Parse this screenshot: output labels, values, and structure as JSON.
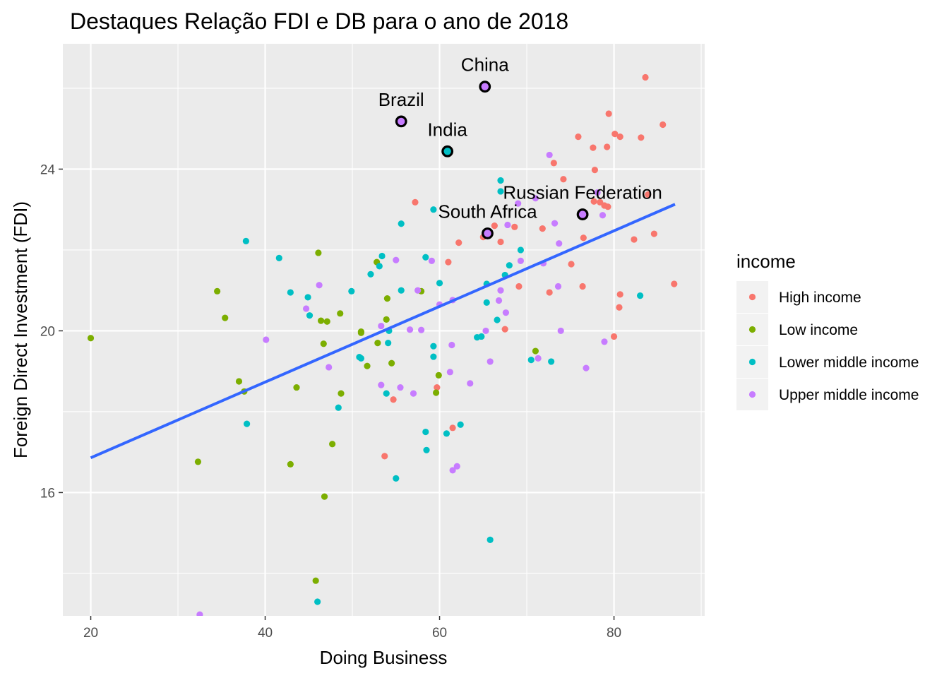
{
  "chart_data": {
    "type": "scatter",
    "title": "Destaques Relação FDI e DB para o ano de 2018",
    "xlabel": "Doing Business",
    "ylabel": "Foreign Direct Investment (FDI)",
    "xlim": [
      16.8,
      90.4
    ],
    "ylim": [
      12.95,
      27.1
    ],
    "x_ticks": [
      20,
      40,
      60,
      80
    ],
    "y_ticks": [
      16,
      20,
      24
    ],
    "grid": true,
    "legend": {
      "title": "income",
      "position": "right",
      "entries": [
        {
          "name": "High income",
          "color": "#F8766D"
        },
        {
          "name": "Low income",
          "color": "#7CAE00"
        },
        {
          "name": "Lower middle income",
          "color": "#00BFC4"
        },
        {
          "name": "Upper middle income",
          "color": "#C77CFF"
        }
      ]
    },
    "trend_line": {
      "color": "#3366FF",
      "x": [
        20,
        87
      ],
      "y": [
        16.86,
        23.13
      ]
    },
    "series": [
      {
        "name": "High income",
        "color": "#F8766D",
        "points": [
          [
            83.6,
            26.27
          ],
          [
            85.6,
            25.1
          ],
          [
            79.4,
            25.37
          ],
          [
            80.1,
            24.87
          ],
          [
            80.7,
            24.8
          ],
          [
            83.1,
            24.78
          ],
          [
            79.2,
            24.55
          ],
          [
            77.6,
            24.53
          ],
          [
            75.9,
            24.8
          ],
          [
            73.1,
            24.15
          ],
          [
            77.8,
            23.98
          ],
          [
            74.2,
            23.75
          ],
          [
            78.4,
            23.18
          ],
          [
            77.7,
            23.2
          ],
          [
            78.9,
            23.1
          ],
          [
            79.3,
            23.07
          ],
          [
            83.9,
            23.37
          ],
          [
            57.2,
            23.18
          ],
          [
            66.3,
            22.6
          ],
          [
            68.6,
            22.57
          ],
          [
            71.8,
            22.53
          ],
          [
            84.6,
            22.4
          ],
          [
            82.3,
            22.26
          ],
          [
            76.5,
            22.3
          ],
          [
            62.2,
            22.18
          ],
          [
            67.0,
            22.2
          ],
          [
            65.0,
            22.32
          ],
          [
            61.0,
            21.7
          ],
          [
            75.1,
            21.65
          ],
          [
            69.1,
            21.1
          ],
          [
            76.4,
            21.1
          ],
          [
            72.6,
            20.95
          ],
          [
            80.7,
            20.9
          ],
          [
            80.6,
            20.58
          ],
          [
            67.5,
            20.04
          ],
          [
            80.0,
            19.86
          ],
          [
            86.9,
            21.16
          ],
          [
            59.7,
            18.6
          ],
          [
            54.7,
            18.3
          ],
          [
            61.5,
            17.6
          ],
          [
            53.7,
            16.9
          ]
        ]
      },
      {
        "name": "Low income",
        "color": "#7CAE00",
        "points": [
          [
            20.0,
            19.82
          ],
          [
            34.5,
            20.98
          ],
          [
            35.4,
            20.32
          ],
          [
            37.0,
            18.75
          ],
          [
            37.6,
            18.5
          ],
          [
            32.3,
            16.76
          ],
          [
            46.1,
            21.93
          ],
          [
            52.8,
            21.7
          ],
          [
            54.0,
            20.8
          ],
          [
            53.9,
            20.28
          ],
          [
            46.4,
            20.25
          ],
          [
            47.1,
            20.23
          ],
          [
            48.6,
            20.43
          ],
          [
            51.0,
            19.98
          ],
          [
            51.0,
            19.95
          ],
          [
            46.7,
            19.68
          ],
          [
            52.9,
            19.7
          ],
          [
            54.5,
            19.2
          ],
          [
            51.7,
            19.13
          ],
          [
            43.6,
            18.6
          ],
          [
            48.7,
            18.45
          ],
          [
            59.9,
            18.9
          ],
          [
            59.6,
            18.47
          ],
          [
            47.7,
            17.2
          ],
          [
            42.9,
            16.7
          ],
          [
            46.8,
            15.9
          ],
          [
            45.8,
            13.82
          ],
          [
            57.9,
            20.98
          ],
          [
            71.0,
            19.5
          ]
        ]
      },
      {
        "name": "Lower middle income",
        "color": "#00BFC4",
        "points": [
          [
            37.8,
            22.22
          ],
          [
            41.6,
            21.8
          ],
          [
            53.4,
            21.85
          ],
          [
            53.1,
            21.6
          ],
          [
            52.1,
            21.4
          ],
          [
            58.4,
            21.82
          ],
          [
            42.9,
            20.95
          ],
          [
            44.9,
            20.83
          ],
          [
            45.1,
            20.38
          ],
          [
            49.9,
            20.98
          ],
          [
            55.6,
            21.0
          ],
          [
            60.0,
            21.18
          ],
          [
            59.3,
            23.0
          ],
          [
            55.6,
            22.65
          ],
          [
            67.0,
            23.72
          ],
          [
            67.0,
            23.45
          ],
          [
            65.4,
            21.16
          ],
          [
            67.5,
            21.38
          ],
          [
            68.0,
            21.62
          ],
          [
            69.3,
            22.0
          ],
          [
            54.2,
            20.0
          ],
          [
            54.1,
            19.7
          ],
          [
            50.8,
            19.35
          ],
          [
            51.0,
            19.32
          ],
          [
            59.3,
            19.62
          ],
          [
            59.3,
            19.36
          ],
          [
            64.3,
            19.84
          ],
          [
            64.8,
            19.86
          ],
          [
            65.4,
            20.7
          ],
          [
            66.6,
            20.27
          ],
          [
            53.9,
            18.45
          ],
          [
            48.4,
            18.1
          ],
          [
            37.9,
            17.7
          ],
          [
            58.4,
            17.5
          ],
          [
            60.8,
            17.46
          ],
          [
            62.4,
            17.68
          ],
          [
            58.5,
            17.05
          ],
          [
            55.0,
            16.35
          ],
          [
            46.0,
            13.3
          ],
          [
            65.8,
            14.83
          ],
          [
            70.5,
            19.28
          ],
          [
            72.8,
            19.24
          ],
          [
            83.0,
            20.87
          ]
        ]
      },
      {
        "name": "Upper middle income",
        "color": "#C77CFF",
        "points": [
          [
            72.6,
            24.35
          ],
          [
            71.0,
            23.28
          ],
          [
            69.0,
            23.15
          ],
          [
            67.8,
            22.62
          ],
          [
            73.2,
            22.66
          ],
          [
            73.7,
            22.16
          ],
          [
            71.9,
            21.67
          ],
          [
            69.3,
            21.73
          ],
          [
            55.0,
            21.75
          ],
          [
            59.1,
            21.73
          ],
          [
            57.5,
            21.0
          ],
          [
            61.5,
            20.76
          ],
          [
            60.0,
            20.65
          ],
          [
            67.0,
            21.0
          ],
          [
            66.8,
            20.75
          ],
          [
            67.6,
            20.45
          ],
          [
            73.6,
            21.1
          ],
          [
            46.2,
            21.13
          ],
          [
            44.7,
            20.55
          ],
          [
            40.1,
            19.78
          ],
          [
            47.3,
            19.1
          ],
          [
            53.3,
            20.12
          ],
          [
            56.6,
            20.03
          ],
          [
            57.9,
            20.02
          ],
          [
            61.2,
            18.98
          ],
          [
            61.4,
            19.65
          ],
          [
            65.3,
            20.0
          ],
          [
            65.8,
            19.24
          ],
          [
            71.3,
            19.32
          ],
          [
            73.9,
            20.0
          ],
          [
            78.9,
            19.73
          ],
          [
            76.8,
            19.08
          ],
          [
            53.3,
            18.66
          ],
          [
            55.5,
            18.6
          ],
          [
            57.0,
            18.45
          ],
          [
            61.5,
            16.55
          ],
          [
            62.0,
            16.65
          ],
          [
            63.5,
            18.7
          ],
          [
            78.1,
            23.42
          ],
          [
            78.7,
            22.86
          ],
          [
            32.5,
            12.98
          ]
        ]
      }
    ],
    "highlighted": [
      {
        "label": "China",
        "x": 65.2,
        "y": 26.04,
        "color": "#C77CFF"
      },
      {
        "label": "Brazil",
        "x": 55.6,
        "y": 25.18,
        "color": "#C77CFF"
      },
      {
        "label": "India",
        "x": 60.9,
        "y": 24.44,
        "color": "#00BFC4"
      },
      {
        "label": "Russian Federation",
        "x": 76.4,
        "y": 22.88,
        "color": "#C77CFF"
      },
      {
        "label": "South Africa",
        "x": 65.5,
        "y": 22.41,
        "color": "#C77CFF"
      }
    ]
  }
}
